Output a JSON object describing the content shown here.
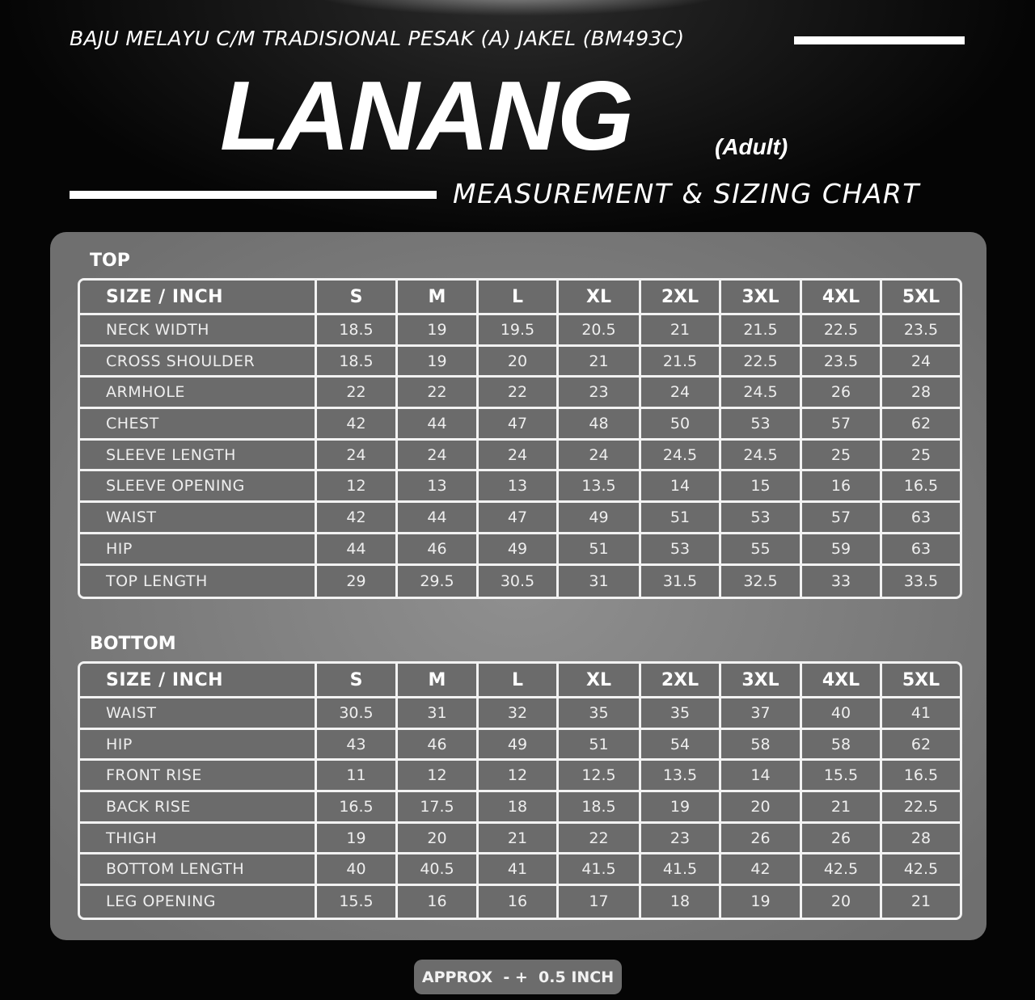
{
  "header": {
    "subtitle": "BAJU MELAYU C/M TRADISIONAL PESAK (A) JAKEL (BM493C)",
    "title": "LANANG",
    "audience": "(Adult)",
    "chart_title": "MEASUREMENT & SIZING CHART"
  },
  "top": {
    "label": "TOP",
    "header": [
      "SIZE / INCH",
      "S",
      "M",
      "L",
      "XL",
      "2XL",
      "3XL",
      "4XL",
      "5XL"
    ],
    "rows": [
      [
        "NECK WIDTH",
        "18.5",
        "19",
        "19.5",
        "20.5",
        "21",
        "21.5",
        "22.5",
        "23.5"
      ],
      [
        "CROSS SHOULDER",
        "18.5",
        "19",
        "20",
        "21",
        "21.5",
        "22.5",
        "23.5",
        "24"
      ],
      [
        "ARMHOLE",
        "22",
        "22",
        "22",
        "23",
        "24",
        "24.5",
        "26",
        "28"
      ],
      [
        "CHEST",
        "42",
        "44",
        "47",
        "48",
        "50",
        "53",
        "57",
        "62"
      ],
      [
        "SLEEVE LENGTH",
        "24",
        "24",
        "24",
        "24",
        "24.5",
        "24.5",
        "25",
        "25"
      ],
      [
        "SLEEVE OPENING",
        "12",
        "13",
        "13",
        "13.5",
        "14",
        "15",
        "16",
        "16.5"
      ],
      [
        "WAIST",
        "42",
        "44",
        "47",
        "49",
        "51",
        "53",
        "57",
        "63"
      ],
      [
        "HIP",
        "44",
        "46",
        "49",
        "51",
        "53",
        "55",
        "59",
        "63"
      ],
      [
        "TOP LENGTH",
        "29",
        "29.5",
        "30.5",
        "31",
        "31.5",
        "32.5",
        "33",
        "33.5"
      ]
    ]
  },
  "bottom": {
    "label": "BOTTOM",
    "header": [
      "SIZE / INCH",
      "S",
      "M",
      "L",
      "XL",
      "2XL",
      "3XL",
      "4XL",
      "5XL"
    ],
    "rows": [
      [
        "WAIST",
        "30.5",
        "31",
        "32",
        "35",
        "35",
        "37",
        "40",
        "41"
      ],
      [
        "HIP",
        "43",
        "46",
        "49",
        "51",
        "54",
        "58",
        "58",
        "62"
      ],
      [
        "FRONT RISE",
        "11",
        "12",
        "12",
        "12.5",
        "13.5",
        "14",
        "15.5",
        "16.5"
      ],
      [
        "BACK RISE",
        "16.5",
        "17.5",
        "18",
        "18.5",
        "19",
        "20",
        "21",
        "22.5"
      ],
      [
        "THIGH",
        "19",
        "20",
        "21",
        "22",
        "23",
        "26",
        "26",
        "28"
      ],
      [
        "BOTTOM LENGTH",
        "40",
        "40.5",
        "41",
        "41.5",
        "41.5",
        "42",
        "42.5",
        "42.5"
      ],
      [
        "LEG OPENING",
        "15.5",
        "16",
        "16",
        "17",
        "18",
        "19",
        "20",
        "21"
      ]
    ]
  },
  "footer": {
    "note": "APPROX  - +  0.5 INCH"
  }
}
